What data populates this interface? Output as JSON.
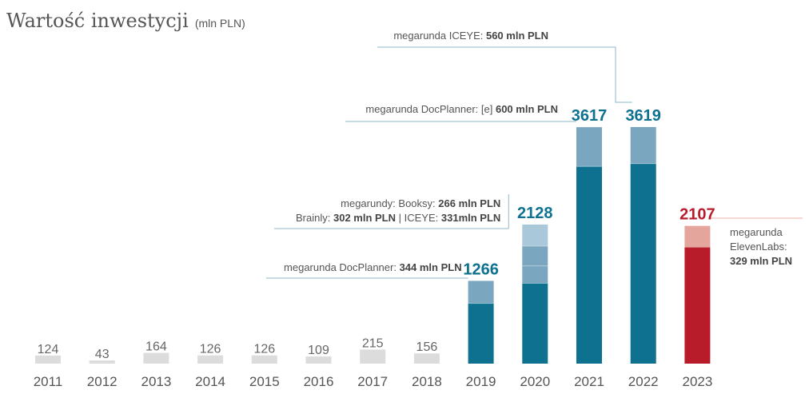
{
  "colors": {
    "grey": "#dcdcdc",
    "teal_dark": "#0e7190",
    "teal_mid": "#7ba6c0",
    "teal_light": "#a9c8da",
    "red": "#b81c2b",
    "red_light": "#e4a59c",
    "line": "#8fb7cc",
    "line_red": "#e8b0a8",
    "highlight_text": "#0e7190",
    "highlight_text_red": "#b81c2b"
  },
  "chart_data": {
    "type": "bar",
    "title": "Wartość inwestycji",
    "title_unit": "(mln PLN)",
    "categories": [
      "2011",
      "2012",
      "2013",
      "2014",
      "2015",
      "2016",
      "2017",
      "2018",
      "2019",
      "2020",
      "2021",
      "2022",
      "2023"
    ],
    "values": [
      124,
      43,
      164,
      126,
      126,
      109,
      215,
      156,
      1266,
      2128,
      3617,
      3619,
      2107
    ],
    "value_labels": [
      "124",
      "43",
      "164",
      "126",
      "126",
      "109",
      "215",
      "156",
      "1266",
      "2128",
      "3617",
      "3619",
      "2107"
    ],
    "stacks": {
      "2019": [
        922,
        344
      ],
      "2020": [
        1229,
        266,
        302,
        331
      ],
      "2021": [
        3017,
        600
      ],
      "2022": [
        3059,
        560
      ],
      "2023": [
        1778,
        329
      ]
    },
    "ylim": [
      0,
      3800
    ],
    "grid": false,
    "legend": "none",
    "annotations": [
      {
        "year": "2019",
        "lines": [
          [
            {
              "t": "megarunda DocPlanner: ",
              "b": false
            },
            {
              "t": "344 mln PLN",
              "b": true
            }
          ]
        ]
      },
      {
        "year": "2020",
        "lines": [
          [
            {
              "t": "megarundy: Booksy: ",
              "b": false
            },
            {
              "t": "266 mln PLN",
              "b": true
            }
          ],
          [
            {
              "t": "Brainly: ",
              "b": false
            },
            {
              "t": "302 mln PLN",
              "b": true
            },
            {
              "t": " | ",
              "b": false
            },
            {
              "t": "ICEYE: ",
              "b": false
            },
            {
              "t": "331mln PLN",
              "b": true
            }
          ]
        ]
      },
      {
        "year": "2021",
        "lines": [
          [
            {
              "t": "megarunda DocPlanner: [e] ",
              "b": false
            },
            {
              "t": "600 mln PLN",
              "b": true
            }
          ]
        ]
      },
      {
        "year": "2022",
        "lines": [
          [
            {
              "t": "megarunda ICEYE: ",
              "b": false
            },
            {
              "t": "560 mln PLN",
              "b": true
            }
          ]
        ]
      },
      {
        "year": "2023",
        "lines": [
          [
            {
              "t": "megarunda",
              "b": false
            }
          ],
          [
            {
              "t": "ElevenLabs:",
              "b": false
            }
          ],
          [
            {
              "t": "329 mln PLN",
              "b": true
            }
          ]
        ]
      }
    ]
  }
}
